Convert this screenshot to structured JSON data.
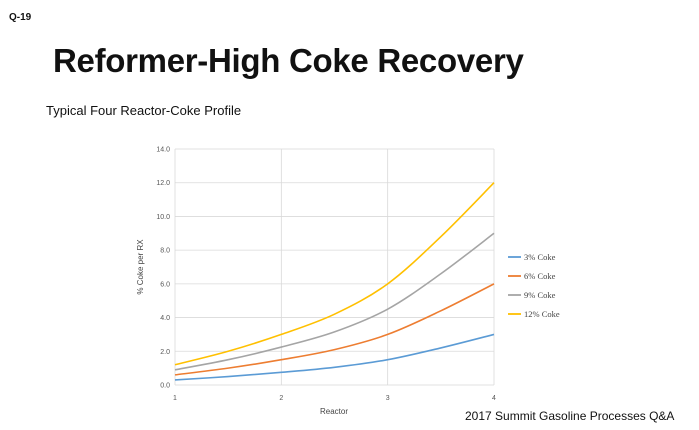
{
  "slide": {
    "id": "Q-19",
    "title": "Reformer-High Coke Recovery",
    "subtitle": "Typical Four Reactor-Coke Profile",
    "footer": "2017 Summit Gasoline Processes Q&A"
  },
  "chart_data": {
    "type": "line",
    "title": "",
    "xlabel": "Reactor",
    "ylabel": "% Coke per RX",
    "x": [
      1,
      1.5,
      2,
      2.5,
      3,
      3.5,
      4
    ],
    "xticks": [
      "1",
      "2",
      "3",
      "4"
    ],
    "xlim": [
      1,
      4
    ],
    "yticks": [
      "0.0",
      "2.0",
      "4.0",
      "6.0",
      "8.0",
      "10.0",
      "12.0",
      "14.0"
    ],
    "ylim": [
      0,
      14
    ],
    "grid": true,
    "legend_position": "right",
    "series": [
      {
        "name": "3% Coke",
        "color": "#5b9bd5",
        "values": [
          0.3,
          0.5,
          0.75,
          1.05,
          1.5,
          2.2,
          3.0
        ]
      },
      {
        "name": "6% Coke",
        "color": "#ed7d31",
        "values": [
          0.6,
          1.0,
          1.5,
          2.1,
          3.0,
          4.4,
          6.0
        ]
      },
      {
        "name": "9% Coke",
        "color": "#a5a5a5",
        "values": [
          0.9,
          1.5,
          2.25,
          3.15,
          4.5,
          6.6,
          9.0
        ]
      },
      {
        "name": "12% Coke",
        "color": "#ffc000",
        "values": [
          1.2,
          2.0,
          3.0,
          4.2,
          6.0,
          8.8,
          12.0
        ]
      }
    ]
  }
}
